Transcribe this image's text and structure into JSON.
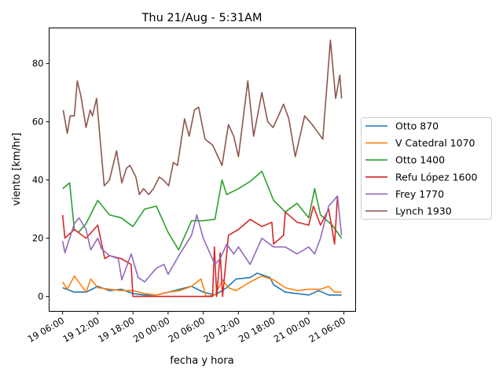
{
  "chart_data": {
    "type": "line",
    "title": "Thu 21/Aug - 5:31AM",
    "xlabel": "fecha y hora",
    "ylabel": "viento [km/hr]",
    "x_units": "hours since 19 06:00",
    "xlim": [
      -2.3,
      50.0
    ],
    "ylim": [
      -5.1,
      92.2
    ],
    "grid": false,
    "legend_placement": "outside-right",
    "xticks": [
      {
        "value": 0,
        "label": "19 06:00"
      },
      {
        "value": 6,
        "label": "19 12:00"
      },
      {
        "value": 12,
        "label": "19 18:00"
      },
      {
        "value": 18,
        "label": "20 00:00"
      },
      {
        "value": 24,
        "label": "20 06:00"
      },
      {
        "value": 30,
        "label": "20 12:00"
      },
      {
        "value": 36,
        "label": "20 18:00"
      },
      {
        "value": 42,
        "label": "21 00:00"
      },
      {
        "value": 48,
        "label": "21 06:00"
      }
    ],
    "yticks": [
      {
        "value": 0,
        "label": "0"
      },
      {
        "value": 20,
        "label": "20"
      },
      {
        "value": 40,
        "label": "40"
      },
      {
        "value": 60,
        "label": "60"
      },
      {
        "value": 80,
        "label": "80"
      }
    ],
    "series": [
      {
        "name": "Otto 870",
        "color": "#1f77b4",
        "points": [
          [
            0,
            3
          ],
          [
            2,
            1.5
          ],
          [
            4,
            1.5
          ],
          [
            6,
            3.5
          ],
          [
            8,
            2
          ],
          [
            10,
            2.5
          ],
          [
            12,
            1
          ],
          [
            14,
            0.5
          ],
          [
            16,
            0.5
          ],
          [
            18,
            1.5
          ],
          [
            20,
            2.5
          ],
          [
            22,
            3.5
          ],
          [
            24,
            1.5
          ],
          [
            25,
            1
          ],
          [
            26,
            0.5
          ],
          [
            28,
            3
          ],
          [
            29.6,
            6
          ],
          [
            32,
            6.5
          ],
          [
            33.2,
            8
          ],
          [
            35.4,
            6.5
          ],
          [
            36,
            4
          ],
          [
            38,
            1.5
          ],
          [
            40,
            1
          ],
          [
            42,
            0.5
          ],
          [
            43.7,
            2
          ],
          [
            45.4,
            0.5
          ],
          [
            47.6,
            0.5
          ]
        ]
      },
      {
        "name": "V Catedral 1070",
        "color": "#ff7f0e",
        "points": [
          [
            0,
            5
          ],
          [
            0.8,
            2.5
          ],
          [
            2,
            7
          ],
          [
            3.1,
            4
          ],
          [
            4,
            1.5
          ],
          [
            4.8,
            6
          ],
          [
            6,
            3
          ],
          [
            8,
            2.5
          ],
          [
            10,
            2
          ],
          [
            12,
            2
          ],
          [
            14,
            1
          ],
          [
            16,
            0.5
          ],
          [
            18,
            1.5
          ],
          [
            20,
            2
          ],
          [
            22,
            3.5
          ],
          [
            23.6,
            6
          ],
          [
            24.5,
            0
          ],
          [
            26,
            0.5
          ],
          [
            27.3,
            5.7
          ],
          [
            28.3,
            3
          ],
          [
            29.6,
            2
          ],
          [
            32,
            5
          ],
          [
            34,
            7
          ],
          [
            36,
            5.7
          ],
          [
            38,
            3
          ],
          [
            40,
            2
          ],
          [
            42,
            2.5
          ],
          [
            44,
            2.5
          ],
          [
            45.4,
            3.5
          ],
          [
            46.4,
            1.5
          ],
          [
            47.6,
            1.5
          ]
        ]
      },
      {
        "name": "Otto 1400",
        "color": "#2ca02c",
        "points": [
          [
            0,
            37
          ],
          [
            1.2,
            39
          ],
          [
            2,
            23
          ],
          [
            2.7,
            22
          ],
          [
            4,
            25
          ],
          [
            6,
            33
          ],
          [
            8,
            28
          ],
          [
            10,
            27
          ],
          [
            12,
            24
          ],
          [
            14,
            30
          ],
          [
            16,
            31
          ],
          [
            18,
            22
          ],
          [
            19.8,
            16
          ],
          [
            22,
            26
          ],
          [
            23,
            26
          ],
          [
            24,
            26
          ],
          [
            26,
            26.5
          ],
          [
            27.2,
            40
          ],
          [
            28,
            35
          ],
          [
            30,
            37
          ],
          [
            32,
            39.5
          ],
          [
            34,
            43
          ],
          [
            36,
            33
          ],
          [
            38,
            29
          ],
          [
            40,
            32
          ],
          [
            42,
            27
          ],
          [
            43,
            37
          ],
          [
            44,
            28
          ],
          [
            46,
            24.5
          ],
          [
            47.6,
            20
          ]
        ]
      },
      {
        "name": "Refu López 1600",
        "color": "#d62728",
        "points": [
          [
            0,
            28
          ],
          [
            0.4,
            20
          ],
          [
            2,
            23
          ],
          [
            4,
            20
          ],
          [
            6,
            24.5
          ],
          [
            7.2,
            13
          ],
          [
            8,
            14
          ],
          [
            10,
            13
          ],
          [
            11.7,
            11
          ],
          [
            12,
            0
          ],
          [
            25.6,
            0
          ],
          [
            25.9,
            17
          ],
          [
            26.3,
            0
          ],
          [
            26.9,
            15
          ],
          [
            27.3,
            0
          ],
          [
            28.3,
            21
          ],
          [
            30,
            23
          ],
          [
            32,
            26.5
          ],
          [
            34,
            24
          ],
          [
            35.7,
            25.5
          ],
          [
            36,
            18
          ],
          [
            37.7,
            21
          ],
          [
            38,
            29
          ],
          [
            40,
            25.5
          ],
          [
            42,
            24.5
          ],
          [
            42.8,
            31
          ],
          [
            44,
            24.5
          ],
          [
            45.4,
            30
          ],
          [
            46.4,
            18
          ],
          [
            46.9,
            34.5
          ]
        ]
      },
      {
        "name": "Frey 1770",
        "color": "#9467bd",
        "points": [
          [
            0,
            19
          ],
          [
            0.4,
            15
          ],
          [
            2,
            25
          ],
          [
            2.8,
            27
          ],
          [
            4,
            23
          ],
          [
            4.8,
            16
          ],
          [
            6,
            20
          ],
          [
            6.6,
            16.5
          ],
          [
            8,
            14
          ],
          [
            9.5,
            13
          ],
          [
            10.1,
            5.7
          ],
          [
            11.7,
            14.6
          ],
          [
            12.9,
            6.5
          ],
          [
            14,
            5
          ],
          [
            16,
            9.7
          ],
          [
            17.3,
            11
          ],
          [
            18,
            7.6
          ],
          [
            20,
            14.6
          ],
          [
            22,
            21
          ],
          [
            22.9,
            28
          ],
          [
            24,
            20
          ],
          [
            26,
            11
          ],
          [
            26.9,
            13
          ],
          [
            28,
            18
          ],
          [
            29.2,
            14.6
          ],
          [
            30,
            17
          ],
          [
            32,
            11
          ],
          [
            34,
            20
          ],
          [
            36,
            17
          ],
          [
            38,
            17
          ],
          [
            40,
            14.6
          ],
          [
            42,
            17
          ],
          [
            43,
            14.6
          ],
          [
            44,
            20
          ],
          [
            45.4,
            31
          ],
          [
            46.9,
            34.5
          ],
          [
            47.6,
            21
          ]
        ]
      },
      {
        "name": "Lynch 1930",
        "color": "#8c564b",
        "points": [
          [
            0.1,
            64
          ],
          [
            0.8,
            56
          ],
          [
            1.3,
            62
          ],
          [
            2,
            62
          ],
          [
            2.5,
            74
          ],
          [
            3.1,
            69
          ],
          [
            4,
            58
          ],
          [
            4.7,
            64
          ],
          [
            5.1,
            62
          ],
          [
            5.8,
            68
          ],
          [
            6.4,
            54
          ],
          [
            7.1,
            38
          ],
          [
            8,
            40
          ],
          [
            9.2,
            50
          ],
          [
            10.1,
            39
          ],
          [
            10.9,
            44
          ],
          [
            11.5,
            45
          ],
          [
            12.5,
            41
          ],
          [
            13.1,
            35
          ],
          [
            13.8,
            37
          ],
          [
            14.7,
            35
          ],
          [
            15.5,
            37
          ],
          [
            16.5,
            41
          ],
          [
            17.2,
            40
          ],
          [
            18.1,
            38
          ],
          [
            18.9,
            46
          ],
          [
            19.6,
            45
          ],
          [
            20.8,
            61
          ],
          [
            21.6,
            55
          ],
          [
            22.5,
            64
          ],
          [
            23.2,
            65
          ],
          [
            24.3,
            54
          ],
          [
            25.6,
            52
          ],
          [
            26.5,
            48
          ],
          [
            27.2,
            45
          ],
          [
            28.3,
            59
          ],
          [
            29.2,
            55
          ],
          [
            30,
            48
          ],
          [
            31.6,
            74
          ],
          [
            32.6,
            55
          ],
          [
            34,
            70
          ],
          [
            35,
            60
          ],
          [
            35.9,
            58
          ],
          [
            36.6,
            61
          ],
          [
            37.7,
            66
          ],
          [
            38.6,
            61
          ],
          [
            39.7,
            48
          ],
          [
            41.3,
            62
          ],
          [
            42.6,
            59
          ],
          [
            44.4,
            54
          ],
          [
            45.7,
            88
          ],
          [
            46.6,
            68
          ],
          [
            47.3,
            76
          ],
          [
            47.6,
            68
          ]
        ]
      }
    ]
  }
}
